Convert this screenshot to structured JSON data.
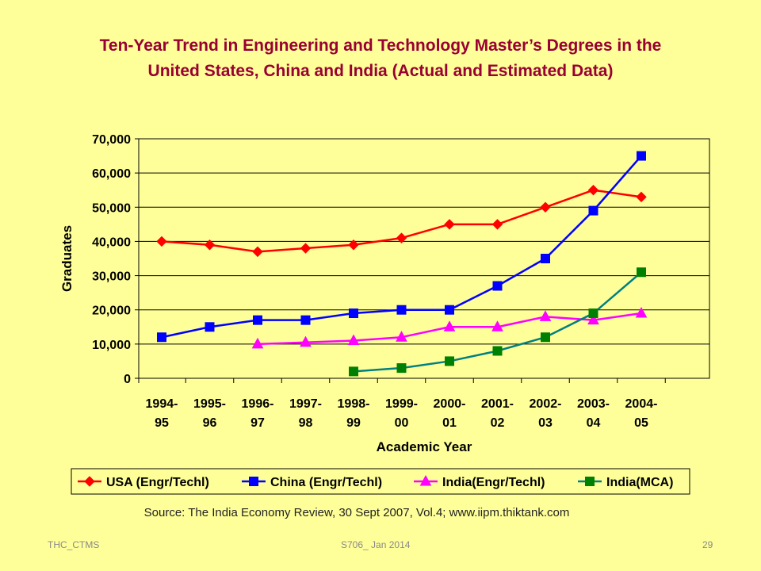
{
  "slide": {
    "title_line1": "Ten-Year Trend in Engineering and Technology Master’s Degrees in the",
    "title_line2": "United States, China and India (Actual and  Estimated Data)",
    "source": "Source:  The India Economy Review, 30 Sept 2007, Vol.4; www.iipm.thiktank.com",
    "footer_left": "THC_CTMS",
    "footer_center": "S706_ Jan 2014",
    "footer_right": "29"
  },
  "chart_data": {
    "type": "line",
    "xlabel": "Academic Year",
    "ylabel": "Graduates",
    "ylim": [
      0,
      70000
    ],
    "ytick_labels": [
      "0",
      "10,000",
      "20,000",
      "30,000",
      "40,000",
      "50,000",
      "60,000",
      "70,000"
    ],
    "yticks": [
      0,
      10000,
      20000,
      30000,
      40000,
      50000,
      60000,
      70000
    ],
    "grid": "horizontal",
    "legend_position": "bottom",
    "categories": [
      {
        "line1": "1994-",
        "line2": "95"
      },
      {
        "line1": "1995-",
        "line2": "96"
      },
      {
        "line1": "1996-",
        "line2": "97"
      },
      {
        "line1": "1997-",
        "line2": "98"
      },
      {
        "line1": "1998-",
        "line2": "99"
      },
      {
        "line1": "1999-",
        "line2": "00"
      },
      {
        "line1": "2000-",
        "line2": "01"
      },
      {
        "line1": "2001-",
        "line2": "02"
      },
      {
        "line1": "2002-",
        "line2": "03"
      },
      {
        "line1": "2003-",
        "line2": "04"
      },
      {
        "line1": "2004-",
        "line2": "05"
      }
    ],
    "series": [
      {
        "name": "USA (Engr/Techl)",
        "color": "#ff0000",
        "marker": "diamond",
        "values": [
          40000,
          39000,
          37000,
          38000,
          39000,
          41000,
          45000,
          45000,
          50000,
          55000,
          53000
        ]
      },
      {
        "name": "China (Engr/Techl)",
        "color": "#0000ff",
        "marker": "square",
        "values": [
          12000,
          15000,
          17000,
          17000,
          19000,
          20000,
          20000,
          27000,
          35000,
          49000,
          65000
        ]
      },
      {
        "name": "India(Engr/Techl)",
        "color": "#ff00ff",
        "marker": "triangle",
        "values": [
          null,
          null,
          10000,
          10500,
          11000,
          12000,
          15000,
          15000,
          18000,
          17000,
          19000
        ]
      },
      {
        "name": "India(MCA)",
        "color": "#008080",
        "marker_color": "#008000",
        "marker": "square",
        "values": [
          null,
          null,
          null,
          null,
          2000,
          3000,
          5000,
          8000,
          12000,
          19000,
          31000
        ]
      }
    ]
  }
}
